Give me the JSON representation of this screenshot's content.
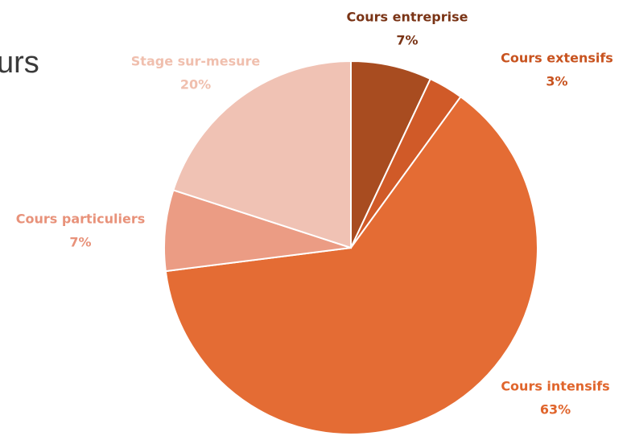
{
  "heading": "urs",
  "chart_data": {
    "type": "pie",
    "categories": [
      "Cours entreprise",
      "Cours extensifs",
      "Cours intensifs",
      "Cours particuliers",
      "Stage sur-mesure"
    ],
    "values": [
      7,
      3,
      63,
      7,
      20
    ],
    "value_labels": [
      "7%",
      "3%",
      "63%",
      "7%",
      "20%"
    ],
    "colors": [
      "#a84c20",
      "#d05a28",
      "#e46c34",
      "#eb9c84",
      "#f0c2b4"
    ],
    "label_colors": [
      "#7a3416",
      "#c8531f",
      "#e0652c",
      "#e8927a",
      "#f0bfae"
    ]
  }
}
